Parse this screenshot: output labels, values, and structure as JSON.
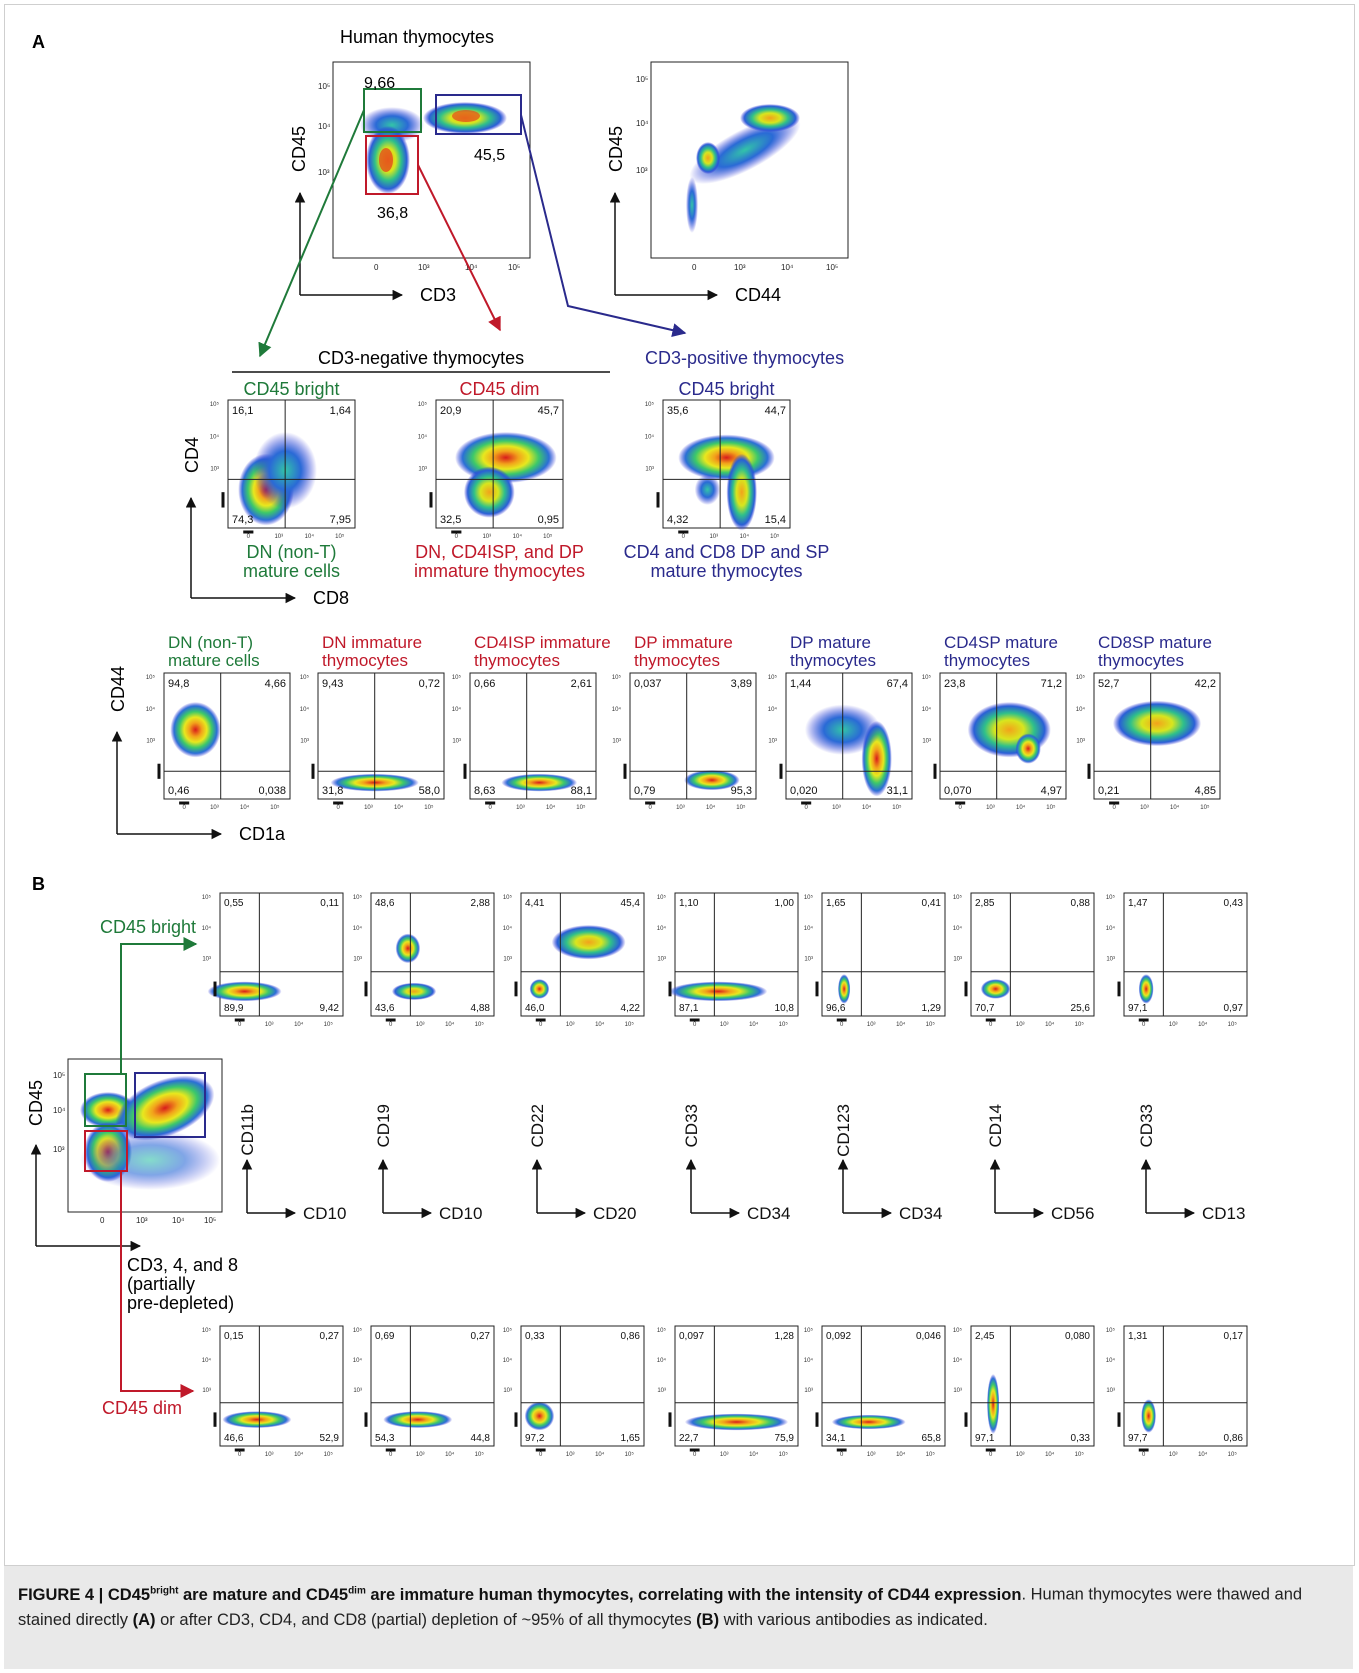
{
  "colors": {
    "green": "#1f7a3a",
    "red": "#c0192a",
    "blue": "#2a2a8c",
    "dark": "#111111"
  },
  "panel_a": {
    "label": "A",
    "title": "Human thymocytes",
    "plot1": {
      "y_label": "CD45",
      "x_label": "CD3",
      "gate_green_value": "9,66",
      "gate_red_value": "36,8",
      "gate_blue_value": "45,5"
    },
    "plot2": {
      "y_label": "CD45",
      "x_label": "CD44"
    },
    "section_negative": "CD3-negative thymocytes",
    "section_positive": "CD3-positive thymocytes",
    "row2_axes": {
      "y_label": "CD4",
      "x_label": "CD8"
    },
    "row2": [
      {
        "title": "CD45 bright",
        "q": [
          "16,1",
          "1,64",
          "74,3",
          "7,95"
        ],
        "desc1": "DN (non-T)",
        "desc2": "mature cells",
        "color": "green"
      },
      {
        "title": "CD45 dim",
        "q": [
          "20,9",
          "45,7",
          "32,5",
          "0,95"
        ],
        "desc1": "DN, CD4ISP, and DP",
        "desc2": "immature thymocytes",
        "color": "red"
      },
      {
        "title": "CD45 bright",
        "q": [
          "35,6",
          "44,7",
          "4,32",
          "15,4"
        ],
        "desc1": "CD4 and CD8 DP and SP",
        "desc2": "mature thymocytes",
        "color": "blue"
      }
    ],
    "row3_axes": {
      "y_label": "CD44",
      "x_label": "CD1a"
    },
    "row3": [
      {
        "title1": "DN (non-T)",
        "title2": "mature cells",
        "q": [
          "94,8",
          "4,66",
          "0,46",
          "0,038"
        ],
        "color": "green"
      },
      {
        "title1": "DN immature",
        "title2": "thymocytes",
        "q": [
          "9,43",
          "0,72",
          "31,8",
          "58,0"
        ],
        "color": "red"
      },
      {
        "title1": "CD4ISP immature",
        "title2": "thymocytes",
        "q": [
          "0,66",
          "2,61",
          "8,63",
          "88,1"
        ],
        "color": "red"
      },
      {
        "title1": "DP immature",
        "title2": "thymocytes",
        "q": [
          "0,037",
          "3,89",
          "0,79",
          "95,3"
        ],
        "color": "red"
      },
      {
        "title1": "DP mature",
        "title2": "thymocytes",
        "q": [
          "1,44",
          "67,4",
          "0,020",
          "31,1"
        ],
        "color": "blue"
      },
      {
        "title1": "CD4SP mature",
        "title2": "thymocytes",
        "q": [
          "23,8",
          "71,2",
          "0,070",
          "4,97"
        ],
        "color": "blue"
      },
      {
        "title1": "CD8SP mature",
        "title2": "thymocytes",
        "q": [
          "52,7",
          "42,2",
          "0,21",
          "4,85"
        ],
        "color": "blue"
      }
    ]
  },
  "panel_b": {
    "label": "B",
    "gate_plot": {
      "y_label": "CD45",
      "x_label_line1": "CD3, 4, and 8",
      "x_label_line2": "(partially",
      "x_label_line3": "pre-depleted)"
    },
    "bright_label": "CD45 bright",
    "dim_label": "CD45 dim",
    "axis_pairs": [
      {
        "y": "CD11b",
        "x": "CD10"
      },
      {
        "y": "CD19",
        "x": "CD10"
      },
      {
        "y": "CD22",
        "x": "CD20"
      },
      {
        "y": "CD33",
        "x": "CD34"
      },
      {
        "y": "CD123",
        "x": "CD34"
      },
      {
        "y": "CD14",
        "x": "CD56"
      },
      {
        "y": "CD33",
        "x": "CD13"
      }
    ],
    "bright_row": [
      [
        "0,55",
        "0,11",
        "89,9",
        "9,42"
      ],
      [
        "48,6",
        "2,88",
        "43,6",
        "4,88"
      ],
      [
        "4,41",
        "45,4",
        "46,0",
        "4,22"
      ],
      [
        "1,10",
        "1,00",
        "87,1",
        "10,8"
      ],
      [
        "1,65",
        "0,41",
        "96,6",
        "1,29"
      ],
      [
        "2,85",
        "0,88",
        "70,7",
        "25,6"
      ],
      [
        "1,47",
        "0,43",
        "97,1",
        "0,97"
      ]
    ],
    "dim_row": [
      [
        "0,15",
        "0,27",
        "46,6",
        "52,9"
      ],
      [
        "0,69",
        "0,27",
        "54,3",
        "44,8"
      ],
      [
        "0,33",
        "0,86",
        "97,2",
        "1,65"
      ],
      [
        "0,097",
        "1,28",
        "22,7",
        "75,9"
      ],
      [
        "0,092",
        "0,046",
        "34,1",
        "65,8"
      ],
      [
        "2,45",
        "0,080",
        "97,1",
        "0,33"
      ],
      [
        "1,31",
        "0,17",
        "97,7",
        "0,86"
      ]
    ]
  },
  "ticks": {
    "exp5": "10⁵",
    "exp4": "10⁴",
    "exp3": "10³",
    "zero": "0"
  },
  "caption": {
    "prefix": "FIGURE 4 | CD45",
    "sup1": "bright",
    "mid1": " are mature and CD45",
    "sup2": "dim",
    "mid2": " are immature human thymocytes, correlating with the intensity of CD44 expression",
    "body1": ". Human thymocytes were thawed and stained directly ",
    "ref_a": "(A)",
    "body2": " or after CD3, CD4, and CD8 (partial) depletion of ~95% of all thymocytes ",
    "ref_b": "(B)",
    "body3": " with various antibodies as indicated."
  }
}
